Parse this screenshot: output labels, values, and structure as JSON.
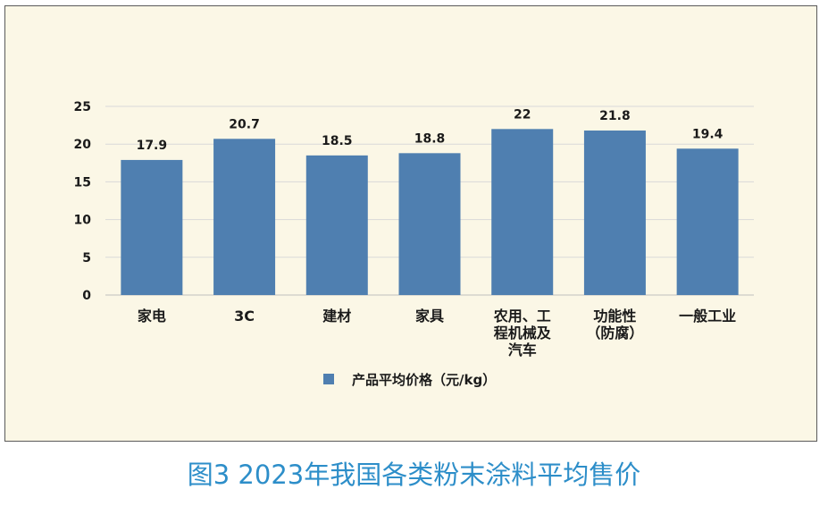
{
  "caption": "图3 2023年我国各类粉末涂料平均售价",
  "colors": {
    "bar": "#4f7fb0",
    "frame_bg": "#fbf7e6",
    "caption": "#2d8ec9",
    "grid": "#d9d9d9"
  },
  "chart_data": {
    "type": "bar",
    "title": "",
    "xlabel": "",
    "ylabel": "",
    "categories": [
      [
        "家电"
      ],
      [
        "3C"
      ],
      [
        "建材"
      ],
      [
        "家具"
      ],
      [
        "农用、工",
        "程机械及",
        "汽车"
      ],
      [
        "功能性",
        "（防腐）"
      ],
      [
        "一般工业"
      ]
    ],
    "series": [
      {
        "name": "产品平均价格（元/kg）",
        "values": [
          17.9,
          20.7,
          18.5,
          18.8,
          22,
          21.8,
          19.4
        ]
      }
    ],
    "value_labels": [
      "17.9",
      "20.7",
      "18.5",
      "18.8",
      "22",
      "21.8",
      "19.4"
    ],
    "ylim": [
      0,
      25
    ],
    "yticks": [
      0,
      5,
      10,
      15,
      20,
      25
    ],
    "grid": true,
    "legend_position": "bottom"
  }
}
